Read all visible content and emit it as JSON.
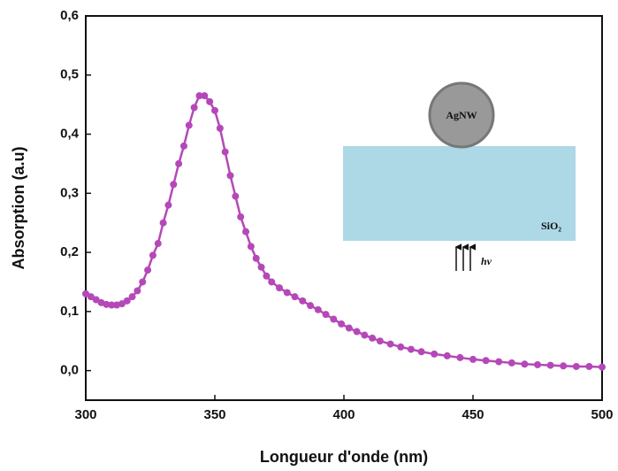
{
  "chart_data": {
    "type": "line",
    "x_label": "Longueur d'onde (nm)",
    "y_label": "Absorption (a.u)",
    "x": [
      300,
      302,
      304,
      306,
      308,
      310,
      312,
      314,
      316,
      318,
      320,
      322,
      324,
      326,
      328,
      330,
      332,
      334,
      336,
      338,
      340,
      342,
      344,
      346,
      348,
      350,
      352,
      354,
      356,
      358,
      360,
      362,
      364,
      366,
      368,
      370,
      372,
      375,
      378,
      381,
      384,
      387,
      390,
      393,
      396,
      399,
      402,
      405,
      408,
      411,
      414,
      418,
      422,
      426,
      430,
      435,
      440,
      445,
      450,
      455,
      460,
      465,
      470,
      475,
      480,
      485,
      490,
      495,
      500
    ],
    "values": [
      0.13,
      0.125,
      0.12,
      0.115,
      0.112,
      0.111,
      0.111,
      0.113,
      0.118,
      0.125,
      0.135,
      0.15,
      0.17,
      0.195,
      0.215,
      0.25,
      0.28,
      0.315,
      0.35,
      0.38,
      0.415,
      0.445,
      0.465,
      0.465,
      0.455,
      0.44,
      0.41,
      0.37,
      0.33,
      0.295,
      0.26,
      0.235,
      0.21,
      0.19,
      0.175,
      0.16,
      0.15,
      0.14,
      0.132,
      0.125,
      0.118,
      0.11,
      0.103,
      0.095,
      0.087,
      0.079,
      0.072,
      0.066,
      0.06,
      0.055,
      0.05,
      0.045,
      0.04,
      0.036,
      0.032,
      0.028,
      0.025,
      0.022,
      0.019,
      0.017,
      0.015,
      0.013,
      0.011,
      0.01,
      0.009,
      0.008,
      0.007,
      0.007,
      0.006
    ],
    "color": "#b548b8",
    "xlim": [
      300,
      500
    ],
    "xticks": [
      300,
      350,
      400,
      450,
      500
    ],
    "ylim": [
      -0.05,
      0.6
    ],
    "yticks": [
      {
        "value": 0.0,
        "label": "0,0"
      },
      {
        "value": 0.1,
        "label": "0,1"
      },
      {
        "value": 0.2,
        "label": "0,2"
      },
      {
        "value": 0.3,
        "label": "0,3"
      },
      {
        "value": 0.4,
        "label": "0,4"
      },
      {
        "value": 0.5,
        "label": "0,5"
      },
      {
        "value": 0.6,
        "label": "0,6"
      }
    ],
    "annotations": [
      "AgNW",
      "SiO₂",
      "hν"
    ]
  }
}
